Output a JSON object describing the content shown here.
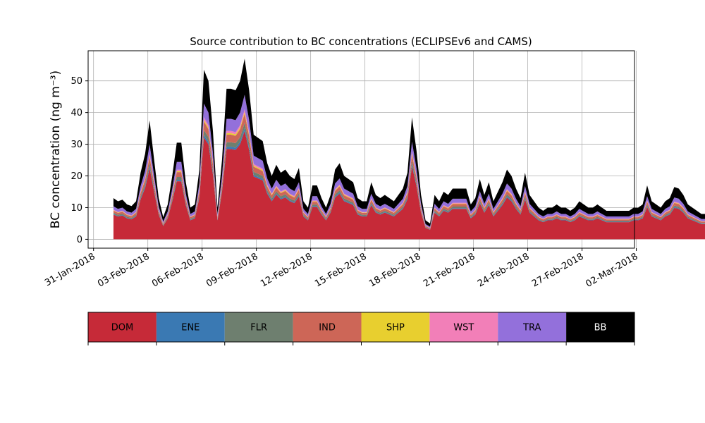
{
  "chart_data": {
    "type": "area",
    "stacked": true,
    "title": "Source contribution to BC concentrations (ECLIPSEv6 and CAMS)",
    "ylabel": "BC concentration (ng m⁻³)",
    "xlabel": "",
    "ylim": [
      -2.8,
      59.5
    ],
    "yticks": [
      0,
      10,
      20,
      30,
      40,
      50
    ],
    "xlim_days": [
      -0.3,
      29.9
    ],
    "x_tick_days": [
      0,
      3,
      6,
      9,
      12,
      15,
      18,
      21,
      24,
      27,
      30
    ],
    "x_tick_labels": [
      "31-Jan-2018",
      "03-Feb-2018",
      "06-Feb-2018",
      "09-Feb-2018",
      "12-Feb-2018",
      "15-Feb-2018",
      "18-Feb-2018",
      "21-Feb-2018",
      "24-Feb-2018",
      "27-Feb-2018",
      "02-Mar-2018"
    ],
    "grid": true,
    "start_day": 1.1,
    "step_days": 0.25,
    "total": [
      13,
      12,
      12.5,
      11,
      10.5,
      12,
      21,
      27,
      37.5,
      25,
      13,
      7,
      11,
      20,
      30.5,
      30.5,
      18,
      10,
      11,
      22,
      53.5,
      50,
      34,
      10,
      25,
      47.5,
      47.5,
      47,
      50,
      57,
      47,
      33,
      32,
      31,
      24,
      20,
      23.5,
      21,
      22,
      20,
      19,
      22.5,
      12,
      10,
      17,
      17,
      13,
      10,
      14,
      22,
      24,
      20,
      19,
      18,
      13,
      12,
      12,
      18,
      14,
      13,
      14,
      13,
      12,
      14,
      16,
      21,
      38.5,
      28,
      14,
      6,
      5,
      14,
      12,
      15,
      14,
      16,
      16,
      16,
      16,
      11,
      13,
      19,
      14,
      18,
      12,
      15,
      18,
      22,
      20,
      16,
      13,
      21,
      14,
      12,
      10,
      9,
      10,
      10,
      11,
      10,
      10,
      9,
      10,
      12,
      11,
      10,
      10,
      11,
      10,
      9,
      9,
      9,
      9,
      9,
      9,
      10,
      10,
      11,
      17,
      12,
      11,
      10,
      12,
      13,
      16.5,
      16,
      14,
      11,
      10,
      9,
      8,
      8,
      9,
      8,
      8,
      9,
      10,
      10,
      9,
      8,
      23,
      28,
      20,
      15,
      15,
      14,
      12,
      21,
      27,
      20,
      24,
      22,
      20,
      24,
      33,
      27,
      24,
      26,
      30,
      37,
      36,
      31,
      27,
      34,
      22,
      16,
      14,
      42.5,
      42,
      15,
      11,
      8,
      6,
      5,
      5,
      6,
      8,
      12,
      19.5,
      20,
      11,
      8,
      6,
      8,
      11,
      13,
      14,
      12,
      9,
      10,
      11,
      12,
      9,
      8,
      6,
      10,
      13,
      12,
      11,
      14,
      12,
      23,
      12,
      10,
      8,
      12,
      17,
      19,
      20,
      20,
      21,
      22,
      17,
      10,
      11,
      14,
      17,
      18,
      17,
      22,
      14,
      13,
      14,
      15,
      16,
      16,
      16,
      15,
      14,
      12,
      10,
      8,
      5,
      4,
      10,
      15,
      17,
      20,
      21,
      29.5,
      22,
      22,
      20,
      20,
      19,
      17,
      15,
      14,
      12,
      11,
      14,
      22
    ],
    "fractions": {
      "DOM": 0.6,
      "ENE": 0.015,
      "FLR": 0.03,
      "IND": 0.05,
      "SHP": 0.01,
      "WST": 0.015,
      "TRA": 0.08
    },
    "series_order": [
      "DOM",
      "ENE",
      "FLR",
      "IND",
      "SHP",
      "WST",
      "TRA",
      "BB"
    ],
    "legend": [
      {
        "name": "DOM",
        "color": "#c62a38",
        "text_color": "#000000"
      },
      {
        "name": "ENE",
        "color": "#3a79b3",
        "text_color": "#000000"
      },
      {
        "name": "FLR",
        "color": "#6e7f6f",
        "text_color": "#000000"
      },
      {
        "name": "IND",
        "color": "#cd6657",
        "text_color": "#000000"
      },
      {
        "name": "SHP",
        "color": "#e8cf2f",
        "text_color": "#000000"
      },
      {
        "name": "WST",
        "color": "#f27fb8",
        "text_color": "#000000"
      },
      {
        "name": "TRA",
        "color": "#9370db",
        "text_color": "#000000"
      },
      {
        "name": "BB",
        "color": "#000000",
        "text_color": "#ffffff"
      }
    ],
    "legend_placement": "bottom"
  }
}
